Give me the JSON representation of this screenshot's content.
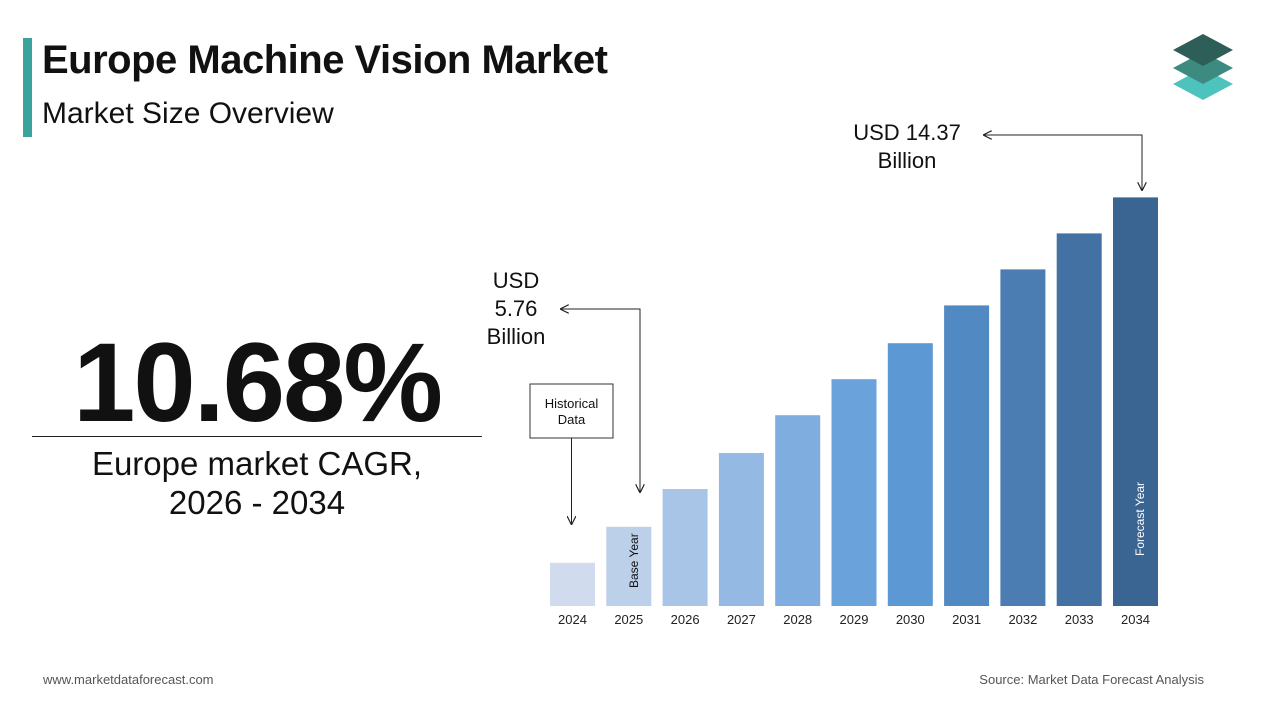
{
  "header": {
    "title": "Europe Machine Vision Market",
    "subtitle": "Market Size Overview"
  },
  "logo": {
    "icon": "stacked-layers-logo-icon",
    "colors": [
      "#2d5e57",
      "#3d8a80",
      "#4ec3bd"
    ]
  },
  "cagr": {
    "value": "10.68%",
    "label_line1": "Europe market CAGR,",
    "label_line2": "2026 - 2034"
  },
  "chart_data": {
    "type": "bar",
    "categories": [
      "2024",
      "2025",
      "2026",
      "2027",
      "2028",
      "2029",
      "2030",
      "2031",
      "2032",
      "2033",
      "2034"
    ],
    "values": [
      1.2,
      2.2,
      3.25,
      4.25,
      5.3,
      6.3,
      7.3,
      8.35,
      9.35,
      10.35,
      11.35
    ],
    "ylim": [
      0,
      12
    ],
    "colors": [
      "#d0dcee",
      "#bdd0ea",
      "#a8c4e6",
      "#94b9e2",
      "#80addf",
      "#6aa2dc",
      "#5b98d4",
      "#5189c2",
      "#4b7cb2",
      "#4371a3",
      "#3a6592"
    ],
    "grid": false,
    "legend": false,
    "annotations": {
      "historical": "Historical Data",
      "base_year": "Base Year",
      "forecast_year": "Forecast Year",
      "start_value_line1": "USD",
      "start_value_line2": "5.76",
      "start_value_line3": "Billion",
      "end_value_line1": "USD 14.37",
      "end_value_line2": "Billion"
    }
  },
  "footer": {
    "website": "www.marketdataforecast.com",
    "source": "Source: Market Data Forecast Analysis"
  }
}
